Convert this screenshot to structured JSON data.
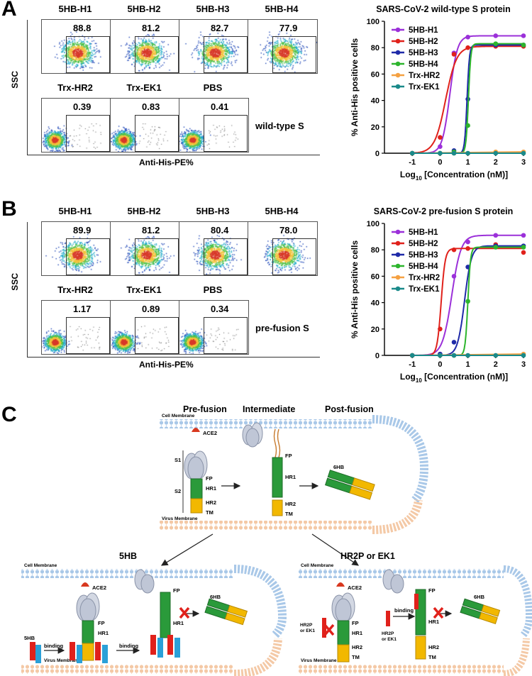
{
  "panel_letters": {
    "a": "A",
    "b": "B",
    "c": "C"
  },
  "flow_a": {
    "samples": [
      {
        "label": "5HB-H1",
        "value": "88.8"
      },
      {
        "label": "5HB-H2",
        "value": "81.2"
      },
      {
        "label": "5HB-H3",
        "value": "82.7"
      },
      {
        "label": "5HB-H4",
        "value": "77.9"
      },
      {
        "label": "Trx-HR2",
        "value": "0.39"
      },
      {
        "label": "Trx-EK1",
        "value": "0.83"
      },
      {
        "label": "PBS",
        "value": "0.41"
      }
    ],
    "condition": "wild-type S",
    "ylabel": "SSC",
    "xlabel": "Anti-His-PE%"
  },
  "flow_b": {
    "samples": [
      {
        "label": "5HB-H1",
        "value": "89.9"
      },
      {
        "label": "5HB-H2",
        "value": "81.2"
      },
      {
        "label": "5HB-H3",
        "value": "80.4"
      },
      {
        "label": "5HB-H4",
        "value": "78.0"
      },
      {
        "label": "Trx-HR2",
        "value": "1.17"
      },
      {
        "label": "Trx-EK1",
        "value": "0.89"
      },
      {
        "label": "PBS",
        "value": "0.34"
      }
    ],
    "condition": "pre-fusion S",
    "ylabel": "SSC",
    "xlabel": "Anti-His-PE%"
  },
  "chart_data": [
    {
      "type": "line",
      "title": "SARS-CoV-2 wild-type S protein",
      "xlabel": "Log10 [Concentration (nM)]",
      "xlabel_main": "Log",
      "xlabel_sub": "10",
      "xlabel_rest": " [Concentration (nM)]",
      "ylabel": "% Anti-His positive cells",
      "xlim": [
        -2,
        3
      ],
      "ylim": [
        0,
        100
      ],
      "xticks": [
        "-1",
        "0",
        "1",
        "2",
        "3"
      ],
      "yticks": [
        "0",
        "20",
        "40",
        "60",
        "80",
        "100"
      ],
      "x": [
        -1,
        0,
        0.5,
        1,
        2,
        3
      ],
      "series": [
        {
          "name": "5HB-H1",
          "color": "#9b30d9",
          "values": [
            0,
            5,
            76,
            88,
            89,
            89
          ],
          "ec50": 0.35,
          "top": 89,
          "hill": 3.2
        },
        {
          "name": "5HB-H2",
          "color": "#e0211b",
          "values": [
            0,
            12,
            75,
            80,
            81,
            81
          ],
          "ec50": 0.2,
          "top": 81,
          "hill": 2.2
        },
        {
          "name": "5HB-H3",
          "color": "#1f2aa8",
          "values": [
            0,
            0,
            2,
            41,
            82,
            82
          ],
          "ec50": 0.97,
          "top": 82,
          "hill": 10
        },
        {
          "name": "5HB-H4",
          "color": "#2db52d",
          "values": [
            0,
            0,
            1,
            21,
            83,
            82
          ],
          "ec50": 1.02,
          "top": 83,
          "hill": 10
        },
        {
          "name": "Trx-HR2",
          "color": "#f5a142",
          "values": [
            0,
            0,
            0,
            0,
            1,
            1
          ]
        },
        {
          "name": "Trx-EK1",
          "color": "#1a8a8a",
          "values": [
            0,
            0,
            0,
            0,
            0,
            0
          ]
        }
      ]
    },
    {
      "type": "line",
      "title": "SARS-CoV-2 pre-fusion S protein",
      "xlabel": "Log10 [Concentration (nM)]",
      "xlabel_main": "Log",
      "xlabel_sub": "10",
      "xlabel_rest": " [Concentration (nM)]",
      "ylabel": "% Anti-His positive cells",
      "xlim": [
        -2,
        3
      ],
      "ylim": [
        0,
        100
      ],
      "xticks": [
        "-1",
        "0",
        "1",
        "2",
        "3"
      ],
      "yticks": [
        "0",
        "20",
        "40",
        "60",
        "80",
        "100"
      ],
      "x": [
        -1,
        0,
        0.5,
        1,
        2,
        3
      ],
      "series": [
        {
          "name": "5HB-H1",
          "color": "#9b30d9",
          "values": [
            0,
            1,
            60,
            86,
            91,
            91
          ],
          "ec50": 0.42,
          "top": 91,
          "hill": 2.6
        },
        {
          "name": "5HB-H2",
          "color": "#e0211b",
          "values": [
            0,
            20,
            80,
            81,
            84,
            78
          ],
          "ec50": 0.04,
          "top": 81,
          "hill": 6
        },
        {
          "name": "5HB-H3",
          "color": "#1f2aa8",
          "values": [
            0,
            1,
            10,
            67,
            83,
            83
          ],
          "ec50": 0.88,
          "top": 83,
          "hill": 3.5
        },
        {
          "name": "5HB-H4",
          "color": "#2db52d",
          "values": [
            0,
            0,
            0,
            41,
            82,
            82
          ],
          "ec50": 1.0,
          "top": 82,
          "hill": 9
        },
        {
          "name": "Trx-HR2",
          "color": "#f5a142",
          "values": [
            0,
            0,
            0,
            0,
            0,
            1
          ]
        },
        {
          "name": "Trx-EK1",
          "color": "#1a8a8a",
          "values": [
            0,
            0,
            0,
            0,
            0,
            0
          ]
        }
      ]
    }
  ],
  "diagram": {
    "stage_prefusion": "Pre-fusion",
    "stage_intermediate": "Intermediate",
    "stage_postfusion": "Post-fusion",
    "cell_membrane": "Cell Membrane",
    "virus_membrane": "Virus Membrane",
    "ace2": "ACE2",
    "s1": "S1",
    "s2": "S2",
    "fp": "FP",
    "hr1": "HR1",
    "hr2": "HR2",
    "tm": "TM",
    "sixhb": "6HB",
    "title_5hb": "5HB",
    "title_hr2p": "HR2P or EK1",
    "label_5hb": "5HB",
    "binding": "binding",
    "hr2p_ek1_a": "HR2P",
    "hr2p_ek1_b": "or EK1"
  }
}
